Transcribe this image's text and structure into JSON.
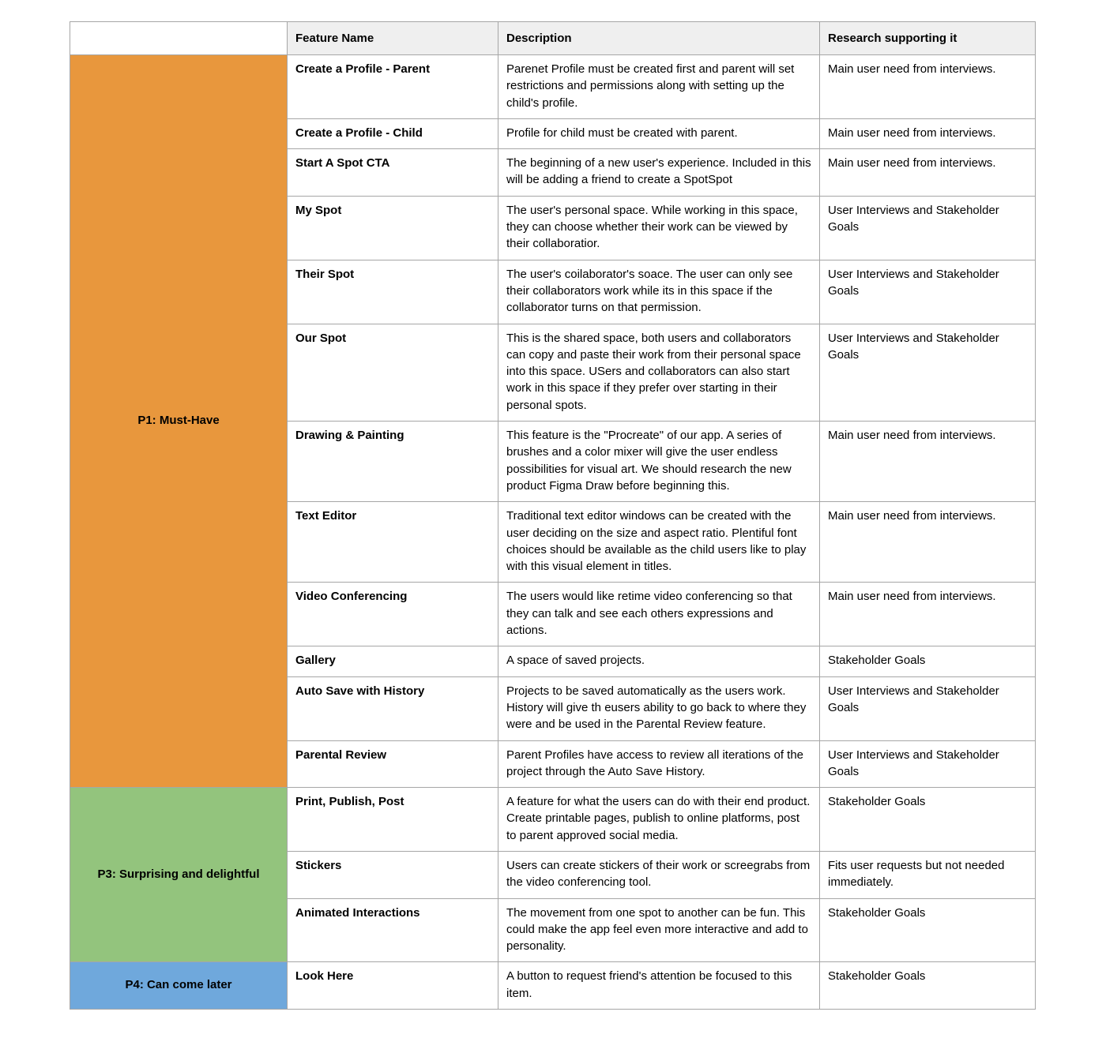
{
  "table": {
    "headers": [
      "",
      "Feature Name",
      "Description",
      "Research supporting it"
    ],
    "groups": [
      {
        "label": "P1: Must-Have",
        "color": "#E8973D",
        "rows": [
          {
            "feature": "Create a Profile - Parent",
            "description": "Parenet Profile must be created first and parent will set restrictions and permissions along with setting up the child's profile.",
            "research": "Main user need from interviews."
          },
          {
            "feature": "Create a Profile - Child",
            "description": "Profile for child must be created with parent.",
            "research": "Main user need from interviews."
          },
          {
            "feature": "Start A Spot CTA",
            "description": "The beginning of a new user's experience. Included in this will be adding a friend to create a SpotSpot",
            "research": "Main user need from interviews."
          },
          {
            "feature": "My Spot",
            "description": "The user's personal space. While working in this space, they can choose whether their work can be viewed by their collaboratior.",
            "research": "User Interviews and Stakeholder Goals"
          },
          {
            "feature": "Their Spot",
            "description": "The user's coilaborator's soace. The user can only see their collaborators work while its in this space if the collaborator turns on that permission.",
            "research": "User Interviews and Stakeholder Goals"
          },
          {
            "feature": "Our Spot",
            "description": "This is the shared space, both users and collaborators can copy and paste their work from their personal space into this space. USers and collaborators can also start work in this space if they prefer over starting in their personal spots.",
            "research": "User Interviews and Stakeholder Goals"
          },
          {
            "feature": "Drawing & Painting",
            "description": "This feature is the \"Procreate\" of our app. A series of brushes and a color mixer will give the user endless possibilities for visual art. We should research the new product Figma Draw before beginning this.",
            "research": "Main user need from interviews."
          },
          {
            "feature": "Text Editor",
            "description": "Traditional text editor windows can be created with the user deciding on the size and aspect ratio. Plentiful font choices should be available as the child users like to play with this visual element in titles.",
            "research": "Main user need from interviews."
          },
          {
            "feature": "Video Conferencing",
            "description": "The users would like retime video conferencing so that they can talk and see each others expressions and actions.",
            "research": "Main user need from interviews."
          },
          {
            "feature": "Gallery",
            "description": "A space of saved projects.",
            "research": "Stakeholder Goals"
          },
          {
            "feature": "Auto Save with History",
            "description": "Projects to be saved automatically as the users work. History will give th eusers ability to go back to where they were and be used in the Parental Review feature.",
            "research": "User Interviews and Stakeholder Goals"
          },
          {
            "feature": "Parental Review",
            "description": "Parent Profiles have access to review all iterations of the project through the Auto Save History.",
            "research": "User Interviews and Stakeholder Goals"
          }
        ]
      },
      {
        "label": "P3: Surprising and delightful",
        "color": "#93C47D",
        "rows": [
          {
            "feature": "Print, Publish, Post",
            "description": "A feature for what the users can do with their end product. Create printable pages, publish to online platforms, post to parent approved social media.",
            "research": "Stakeholder Goals"
          },
          {
            "feature": "Stickers",
            "description": "Users can create stickers of their work or screegrabs from the video conferencing tool.",
            "research": "Fits user requests but not needed immediately."
          },
          {
            "feature": "Animated Interactions",
            "description": "The movement from one spot to another can be fun. This could make the app feel even more interactive and add to personality.",
            "research": "Stakeholder Goals"
          }
        ]
      },
      {
        "label": "P4: Can come later",
        "color": "#6FA8DC",
        "rows": [
          {
            "feature": "Look Here",
            "description": "A button to request friend's attention be focused to this item.",
            "research": "Stakeholder Goals"
          }
        ]
      }
    ]
  }
}
